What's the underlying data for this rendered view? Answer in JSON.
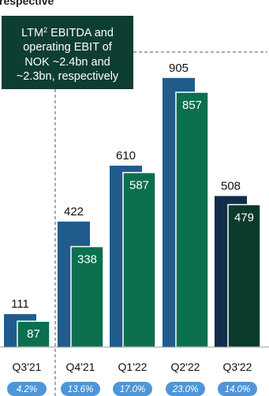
{
  "heading_fragment": "respective",
  "callout": {
    "line1_prefix": "LTM",
    "footnote_marker": "2",
    "line1_suffix": " EBITDA and",
    "line2": "operating EBIT of",
    "line3": "NOK ~2.4bn and",
    "line4": "~2.3bn, respectively"
  },
  "colors": {
    "ebitda_bar": "#1f5c8c",
    "ebit_bar": "#0b6f50",
    "ebitda_bar_latest": "#0f2e4a",
    "ebit_bar_latest": "#0a3a2c",
    "callout_bg": "#0e3d31",
    "margin_pill": "#4f96d8"
  },
  "chart_data": {
    "type": "bar",
    "categories": [
      "Q3'21",
      "Q4'21",
      "Q1'22",
      "Q2'22",
      "Q3'22"
    ],
    "series": [
      {
        "values": [
          111,
          422,
          610,
          905,
          508
        ]
      },
      {
        "values": [
          87,
          338,
          587,
          857,
          479
        ]
      }
    ],
    "margins": [
      "4.2%",
      "13.6%",
      "17.0%",
      "23.0%",
      "14.0%"
    ],
    "ylim": [
      0,
      1000
    ],
    "grid": false
  }
}
